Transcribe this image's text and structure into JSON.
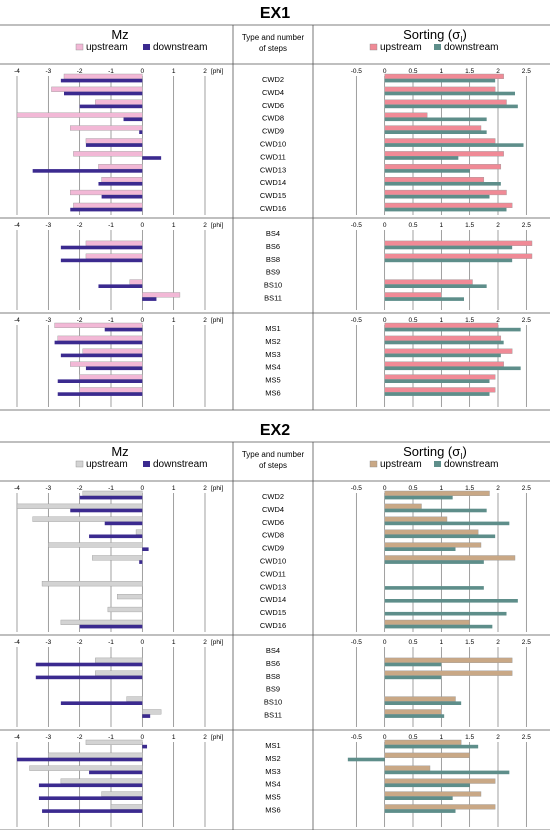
{
  "colors": {
    "ex1": {
      "mz_up": "#f2b8d6",
      "mz_down": "#3b2a8f",
      "sort_up": "#f08a96",
      "sort_down": "#5e8e8a"
    },
    "ex2": {
      "mz_up": "#d3d3d3",
      "mz_down": "#3b2a8f",
      "sort_up": "#c9a886",
      "sort_down": "#5e8e8a"
    }
  },
  "mz_axis": {
    "ticks": [
      "-4",
      "-3",
      "-2",
      "-1",
      "0",
      "1",
      "2"
    ],
    "unit": "[phi]",
    "min": -4,
    "max": 2
  },
  "sort_axis": {
    "ticks": [
      "-0.5",
      "0",
      "0.5",
      "1",
      "1.5",
      "2",
      "2.5"
    ],
    "min": -0.7,
    "max": 2.6
  },
  "middle_header": [
    "Type and number",
    "of steps"
  ],
  "chart_data": [
    {
      "type": "bar",
      "title": "EX1",
      "left_title": "Mz",
      "right_title": "Sorting (σ",
      "right_title_sub": "I",
      "right_title_end": ")",
      "legend": {
        "left": [
          "upstream",
          "downstream"
        ],
        "right": [
          "upstream",
          "downstream"
        ]
      },
      "groups": [
        {
          "labels": [
            "CWD2",
            "CWD4",
            "CWD6",
            "CWD8",
            "CWD9",
            "CWD10",
            "CWD11",
            "CWD13",
            "CWD14",
            "CWD15",
            "CWD16"
          ],
          "mz_up": [
            -2.5,
            -2.9,
            -1.5,
            -4.0,
            -2.3,
            -1.8,
            -2.2,
            -1.4,
            -1.3,
            -2.3,
            -2.2
          ],
          "mz_down": [
            -2.6,
            -2.5,
            -2.0,
            -0.6,
            -0.1,
            -1.8,
            0.6,
            -3.5,
            -1.4,
            -1.3,
            -2.3
          ],
          "sort_up": [
            2.1,
            1.95,
            2.15,
            0.75,
            1.7,
            1.95,
            2.1,
            2.05,
            1.75,
            2.15,
            2.25
          ],
          "sort_down": [
            1.95,
            2.3,
            2.35,
            1.8,
            1.8,
            2.45,
            1.3,
            1.5,
            2.05,
            1.85,
            2.15
          ]
        },
        {
          "labels": [
            "BS4",
            "BS6",
            "BS8",
            "BS9",
            "BS10",
            "BS11"
          ],
          "mz_up": [
            null,
            -1.8,
            -1.8,
            null,
            -0.4,
            1.2
          ],
          "mz_down": [
            null,
            -2.6,
            -2.6,
            null,
            -1.4,
            0.45
          ],
          "sort_up": [
            null,
            2.6,
            2.6,
            null,
            1.55,
            1.0
          ],
          "sort_down": [
            null,
            2.25,
            2.25,
            null,
            1.8,
            1.4
          ]
        },
        {
          "labels": [
            "MS1",
            "MS2",
            "MS3",
            "MS4",
            "MS5",
            "MS6"
          ],
          "mz_up": [
            -2.8,
            -2.7,
            -1.9,
            -2.3,
            -2.0,
            -2.0
          ],
          "mz_down": [
            -1.2,
            -2.8,
            -2.6,
            -1.8,
            -2.7,
            -2.7
          ],
          "sort_up": [
            2.0,
            2.05,
            2.25,
            2.1,
            1.95,
            1.95
          ],
          "sort_down": [
            2.4,
            2.1,
            2.05,
            2.4,
            1.85,
            1.85
          ]
        }
      ]
    },
    {
      "type": "bar",
      "title": "EX2",
      "left_title": "Mz",
      "right_title": "Sorting (σ",
      "right_title_sub": "I",
      "right_title_end": ")",
      "legend": {
        "left": [
          "upstream",
          "downstream"
        ],
        "right": [
          "upstream",
          "downstream"
        ]
      },
      "groups": [
        {
          "labels": [
            "CWD2",
            "CWD4",
            "CWD6",
            "CWD8",
            "CWD9",
            "CWD10",
            "CWD11",
            "CWD13",
            "CWD14",
            "CWD15",
            "CWD16"
          ],
          "mz_up": [
            -1.9,
            -4.0,
            -3.5,
            -0.2,
            -3.0,
            -1.6,
            null,
            -3.2,
            -0.8,
            -1.1,
            -2.6
          ],
          "mz_down": [
            -2.0,
            -2.3,
            -1.2,
            -1.7,
            0.2,
            -0.1,
            null,
            null,
            null,
            null,
            -2.0
          ],
          "sort_up": [
            1.85,
            0.65,
            1.1,
            1.65,
            1.7,
            2.3,
            null,
            null,
            null,
            null,
            1.5
          ],
          "sort_down": [
            1.2,
            1.8,
            2.2,
            1.95,
            1.25,
            1.75,
            null,
            1.75,
            2.35,
            2.15,
            1.9
          ]
        },
        {
          "labels": [
            "BS4",
            "BS6",
            "BS8",
            "BS9",
            "BS10",
            "BS11"
          ],
          "mz_up": [
            null,
            -1.5,
            -1.5,
            null,
            -0.5,
            0.6
          ],
          "mz_down": [
            null,
            -3.4,
            -3.4,
            null,
            -2.6,
            0.25
          ],
          "sort_up": [
            null,
            2.25,
            2.25,
            null,
            1.25,
            1.0
          ],
          "sort_down": [
            null,
            1.0,
            1.0,
            null,
            1.35,
            1.05
          ]
        },
        {
          "labels": [
            "MS1",
            "MS2",
            "MS3",
            "MS4",
            "MS5",
            "MS6"
          ],
          "mz_up": [
            -1.8,
            -3.0,
            -3.6,
            -2.6,
            -1.3,
            -1.0
          ],
          "mz_down": [
            0.15,
            -4.0,
            -1.7,
            -3.3,
            -3.3,
            -3.2
          ],
          "sort_up": [
            1.35,
            1.5,
            0.8,
            1.95,
            1.7,
            1.95
          ],
          "sort_down": [
            1.65,
            -0.65,
            2.2,
            1.5,
            1.2,
            1.25
          ]
        }
      ]
    }
  ]
}
